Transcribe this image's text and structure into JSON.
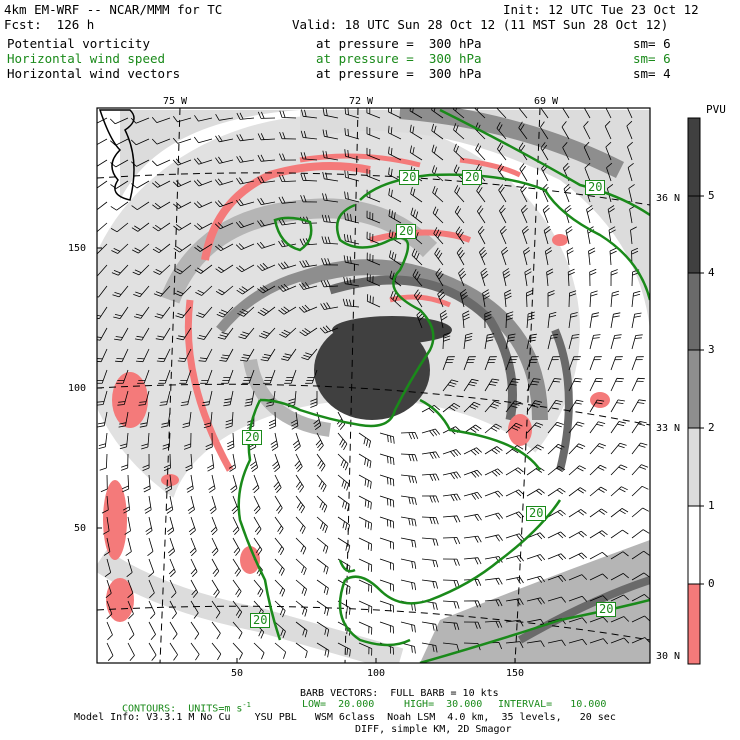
{
  "header": {
    "model": "4km EM-WRF -- NCAR/MMM for TC",
    "init": "Init: 12 UTC Tue 23 Oct 12",
    "fcst": "Fcst:  126 h",
    "valid": "Valid: 18 UTC Sun 28 Oct 12 (11 MST Sun 28 Oct 12)",
    "fields": [
      {
        "name": "Potential vorticity",
        "level": "at pressure =  300 hPa",
        "sm": "sm= 6",
        "color": "#000000"
      },
      {
        "name": "Horizontal wind speed",
        "level": "at pressure =  300 hPa",
        "sm": "sm= 6",
        "color": "#1a8a1a"
      },
      {
        "name": "Horizontal wind vectors",
        "level": "at pressure =  300 hPa",
        "sm": "sm= 4",
        "color": "#000000"
      }
    ]
  },
  "map": {
    "top_lon_labels": [
      "75 W",
      "72 W",
      "69 W"
    ],
    "right_lat_labels": [
      "36 N",
      "33 N",
      "30 N"
    ],
    "left_y_ticks": [
      "150",
      "100",
      "50"
    ],
    "bottom_x_ticks": [
      "50",
      "100",
      "150"
    ],
    "contour_labels": [
      "20",
      "20",
      "20",
      "20",
      "20",
      "20",
      "20",
      "20"
    ]
  },
  "colorbar": {
    "unit": "PVU",
    "labels": [
      "5",
      "4",
      "3",
      "2",
      "1",
      "0"
    ],
    "colors": [
      "#404040",
      "#6a6a6a",
      "#8e8e8e",
      "#b5b5b5",
      "#dcdcdc",
      "#ffffff",
      "#f47a7a"
    ]
  },
  "footer": {
    "barb": "BARB VECTORS:  FULL BARB = 10 kts",
    "contours": "CONTOURS:  UNITS=m s",
    "units_sup": "-1",
    "low": "LOW=  20.000",
    "high": "HIGH=  30.000",
    "interval": "INTERVAL=   10.000",
    "model_info": "Model Info: V3.3.1 M No Cu    YSU PBL   WSM 6class  Noah LSM  4.0 km,  35 levels,   20 sec",
    "diff": "DIFF, simple KM, 2D Smagor"
  },
  "colors": {
    "contour_green": "#1a8a1a",
    "negative_pv": "#f47a7a"
  }
}
